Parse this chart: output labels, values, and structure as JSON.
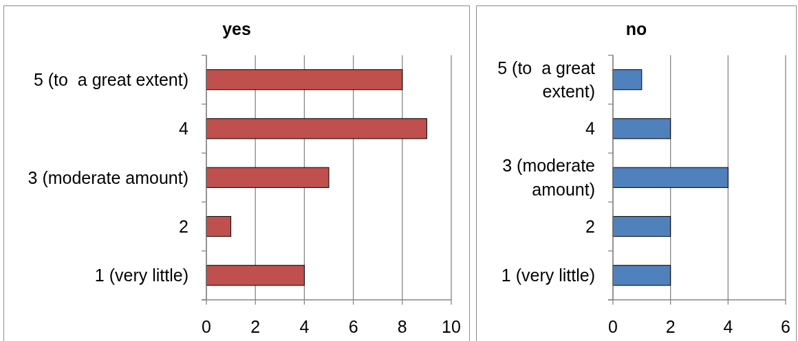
{
  "chart_data": [
    {
      "type": "bar",
      "orientation": "horizontal",
      "title": "yes",
      "categories": [
        "5 (to  a great extent)",
        "4",
        "3 (moderate amount)",
        "2",
        "1 (very little)"
      ],
      "values": [
        8,
        9,
        5,
        1,
        4
      ],
      "color": "#c0504d",
      "xlim": [
        0,
        10
      ],
      "xticks": [
        0,
        2,
        4,
        6,
        8,
        10
      ],
      "grid": "x"
    },
    {
      "type": "bar",
      "orientation": "horizontal",
      "title": "no",
      "categories": [
        "5 (to  a great extent)",
        "4",
        "3 (moderate amount)",
        "2",
        "1 (very little)"
      ],
      "values": [
        1,
        2,
        4,
        2,
        2
      ],
      "color": "#4f81bd",
      "xlim": [
        0,
        6
      ],
      "xticks": [
        0,
        2,
        4,
        6
      ],
      "grid": "x"
    }
  ]
}
